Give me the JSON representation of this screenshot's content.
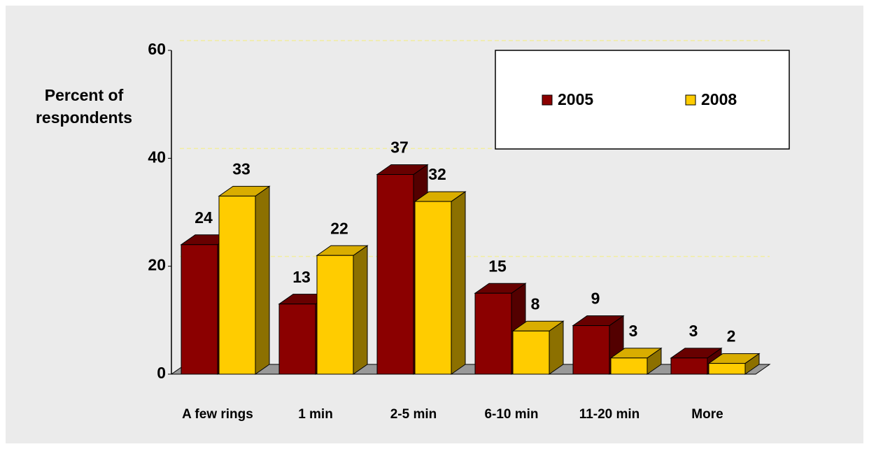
{
  "chart_data": {
    "type": "bar3d",
    "y_label": "Percent of respondents",
    "categories": [
      "A few rings",
      "1 min",
      "2-5 min",
      "6-10 min",
      "11-20 min",
      "More"
    ],
    "series": [
      {
        "name": "2005",
        "color": "#8b0000",
        "values": [
          24,
          13,
          37,
          15,
          9,
          3
        ]
      },
      {
        "name": "2008",
        "color": "#ffcc00",
        "values": [
          33,
          22,
          32,
          8,
          3,
          2
        ]
      }
    ],
    "ylim": [
      0,
      60
    ],
    "yticks": [
      0,
      20,
      40,
      60
    ],
    "grid": true
  }
}
